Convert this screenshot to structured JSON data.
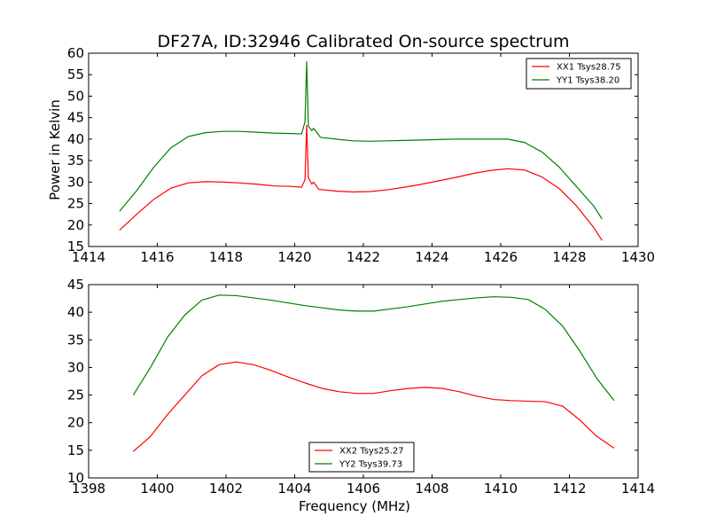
{
  "figure": {
    "title": "DF27A, ID:32946 Calibrated On-source spectrum"
  },
  "colors": {
    "red": "#ff0000",
    "green": "#008000"
  },
  "chart_data": [
    {
      "type": "line",
      "title": "DF27A, ID:32946 Calibrated On-source spectrum",
      "xlabel": "",
      "ylabel": "Power in Kelvin",
      "xlim": [
        1414,
        1430
      ],
      "ylim": [
        15,
        60
      ],
      "xticks": [
        1414,
        1416,
        1418,
        1420,
        1422,
        1424,
        1426,
        1428,
        1430
      ],
      "yticks": [
        15,
        20,
        25,
        30,
        35,
        40,
        45,
        50,
        55,
        60
      ],
      "grid": false,
      "legend": "top-right",
      "series": [
        {
          "name": "XX1 Tsys28.75",
          "color": "#ff0000",
          "x": [
            1414.9,
            1415.4,
            1415.9,
            1416.4,
            1416.9,
            1417.4,
            1417.9,
            1418.4,
            1418.9,
            1419.4,
            1419.9,
            1420.2,
            1420.3,
            1420.35,
            1420.4,
            1420.5,
            1420.55,
            1420.7,
            1421.2,
            1421.7,
            1422.2,
            1422.7,
            1423.2,
            1423.7,
            1424.2,
            1424.7,
            1425.2,
            1425.7,
            1426.2,
            1426.7,
            1427.2,
            1427.7,
            1428.2,
            1428.7,
            1428.95
          ],
          "values": [
            18.8,
            22.5,
            26.0,
            28.6,
            29.8,
            30.1,
            30.0,
            29.8,
            29.5,
            29.1,
            29.0,
            28.8,
            30.5,
            43.2,
            31.0,
            29.5,
            30.0,
            28.3,
            27.9,
            27.7,
            27.8,
            28.2,
            28.8,
            29.5,
            30.3,
            31.1,
            32.0,
            32.7,
            33.1,
            32.8,
            31.2,
            28.5,
            24.5,
            19.5,
            16.4
          ]
        },
        {
          "name": "YY1 Tsys38.20",
          "color": "#008000",
          "x": [
            1414.9,
            1415.4,
            1415.9,
            1416.4,
            1416.9,
            1417.4,
            1417.9,
            1418.4,
            1418.9,
            1419.4,
            1419.9,
            1420.2,
            1420.3,
            1420.35,
            1420.4,
            1420.5,
            1420.55,
            1420.65,
            1420.75,
            1421.2,
            1421.7,
            1422.2,
            1422.7,
            1423.2,
            1423.7,
            1424.2,
            1424.7,
            1425.2,
            1425.7,
            1426.2,
            1426.7,
            1427.2,
            1427.7,
            1428.2,
            1428.7,
            1428.95
          ],
          "values": [
            23.2,
            28.0,
            33.5,
            38.0,
            40.6,
            41.5,
            41.8,
            41.8,
            41.6,
            41.4,
            41.3,
            41.2,
            44.0,
            58.0,
            43.0,
            42.0,
            42.5,
            41.5,
            40.4,
            40.0,
            39.6,
            39.5,
            39.6,
            39.7,
            39.8,
            39.9,
            40.0,
            40.0,
            40.0,
            40.0,
            39.2,
            37.0,
            33.5,
            29.0,
            24.5,
            21.4
          ]
        }
      ]
    },
    {
      "type": "line",
      "title": "",
      "xlabel": "Frequency (MHz)",
      "ylabel": "",
      "xlim": [
        1398,
        1414
      ],
      "ylim": [
        10,
        45
      ],
      "xticks": [
        1398,
        1400,
        1402,
        1404,
        1406,
        1408,
        1410,
        1412,
        1414
      ],
      "yticks": [
        10,
        15,
        20,
        25,
        30,
        35,
        40,
        45
      ],
      "grid": false,
      "legend": "bottom-center",
      "series": [
        {
          "name": "XX2 Tsys25.27",
          "color": "#ff0000",
          "x": [
            1399.3,
            1399.8,
            1400.3,
            1400.8,
            1401.3,
            1401.8,
            1402.3,
            1402.8,
            1403.3,
            1403.8,
            1404.3,
            1404.8,
            1405.3,
            1405.8,
            1406.3,
            1406.8,
            1407.3,
            1407.8,
            1408.3,
            1408.8,
            1409.3,
            1409.8,
            1410.3,
            1410.8,
            1411.3,
            1411.8,
            1412.3,
            1412.8,
            1413.3
          ],
          "values": [
            14.8,
            17.5,
            21.5,
            25.0,
            28.5,
            30.5,
            31.0,
            30.5,
            29.5,
            28.3,
            27.2,
            26.2,
            25.6,
            25.3,
            25.3,
            25.8,
            26.2,
            26.4,
            26.2,
            25.6,
            24.8,
            24.2,
            24.0,
            23.9,
            23.8,
            23.0,
            20.5,
            17.5,
            15.4
          ]
        },
        {
          "name": "YY2 Tsys39.73",
          "color": "#008000",
          "x": [
            1399.3,
            1399.8,
            1400.3,
            1400.8,
            1401.3,
            1401.8,
            1402.3,
            1402.8,
            1403.3,
            1403.8,
            1404.3,
            1404.8,
            1405.3,
            1405.8,
            1406.3,
            1406.8,
            1407.3,
            1407.8,
            1408.3,
            1408.8,
            1409.3,
            1409.8,
            1410.3,
            1410.8,
            1411.3,
            1411.8,
            1412.3,
            1412.8,
            1413.3
          ],
          "values": [
            25.0,
            30.0,
            35.5,
            39.5,
            42.2,
            43.1,
            43.0,
            42.6,
            42.2,
            41.7,
            41.2,
            40.8,
            40.4,
            40.2,
            40.2,
            40.6,
            41.0,
            41.5,
            42.0,
            42.3,
            42.6,
            42.8,
            42.7,
            42.3,
            40.5,
            37.5,
            33.0,
            28.0,
            24.0
          ]
        }
      ]
    }
  ]
}
